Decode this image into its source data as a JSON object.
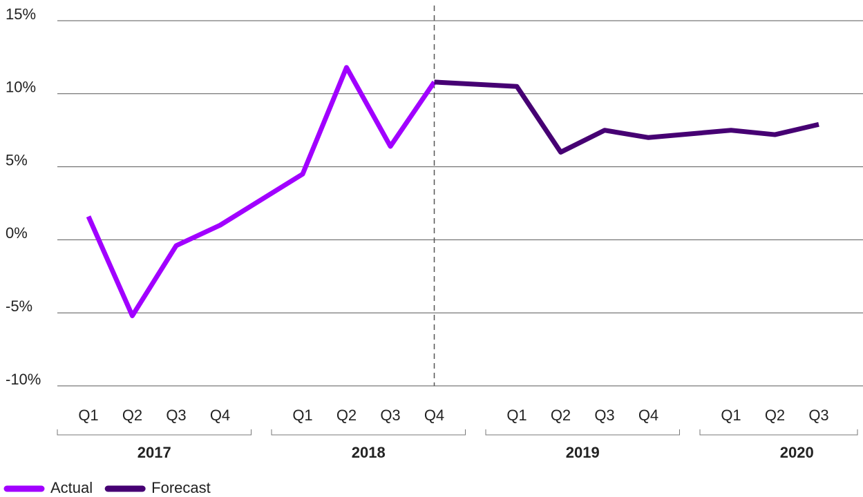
{
  "chart_data": {
    "type": "line",
    "groups": [
      {
        "name": "2017",
        "categories": [
          "Q1",
          "Q2",
          "Q3",
          "Q4"
        ]
      },
      {
        "name": "2018",
        "categories": [
          "Q1",
          "Q2",
          "Q3",
          "Q4"
        ]
      },
      {
        "name": "2019",
        "categories": [
          "Q1",
          "Q2",
          "Q3",
          "Q4"
        ]
      },
      {
        "name": "2020",
        "categories": [
          "Q1",
          "Q2",
          "Q3"
        ]
      }
    ],
    "series": [
      {
        "name": "Actual",
        "color": "#a100ff",
        "values": [
          1.6,
          -5.2,
          -0.4,
          1.0,
          4.5,
          11.8,
          6.4,
          10.8,
          null,
          null,
          null,
          null,
          null,
          null,
          null
        ]
      },
      {
        "name": "Forecast",
        "color": "#460073",
        "values": [
          null,
          null,
          null,
          null,
          null,
          null,
          null,
          10.8,
          10.5,
          6.0,
          7.5,
          7.0,
          7.5,
          7.2,
          7.9
        ]
      }
    ],
    "ylim": [
      -10,
      15
    ],
    "yticks": [
      {
        "value": -10,
        "label": "-10%"
      },
      {
        "value": -5,
        "label": "-5%"
      },
      {
        "value": 0,
        "label": "0%"
      },
      {
        "value": 5,
        "label": "5%"
      },
      {
        "value": 10,
        "label": "10%"
      },
      {
        "value": 15,
        "label": "15%"
      }
    ],
    "grid": true
  }
}
